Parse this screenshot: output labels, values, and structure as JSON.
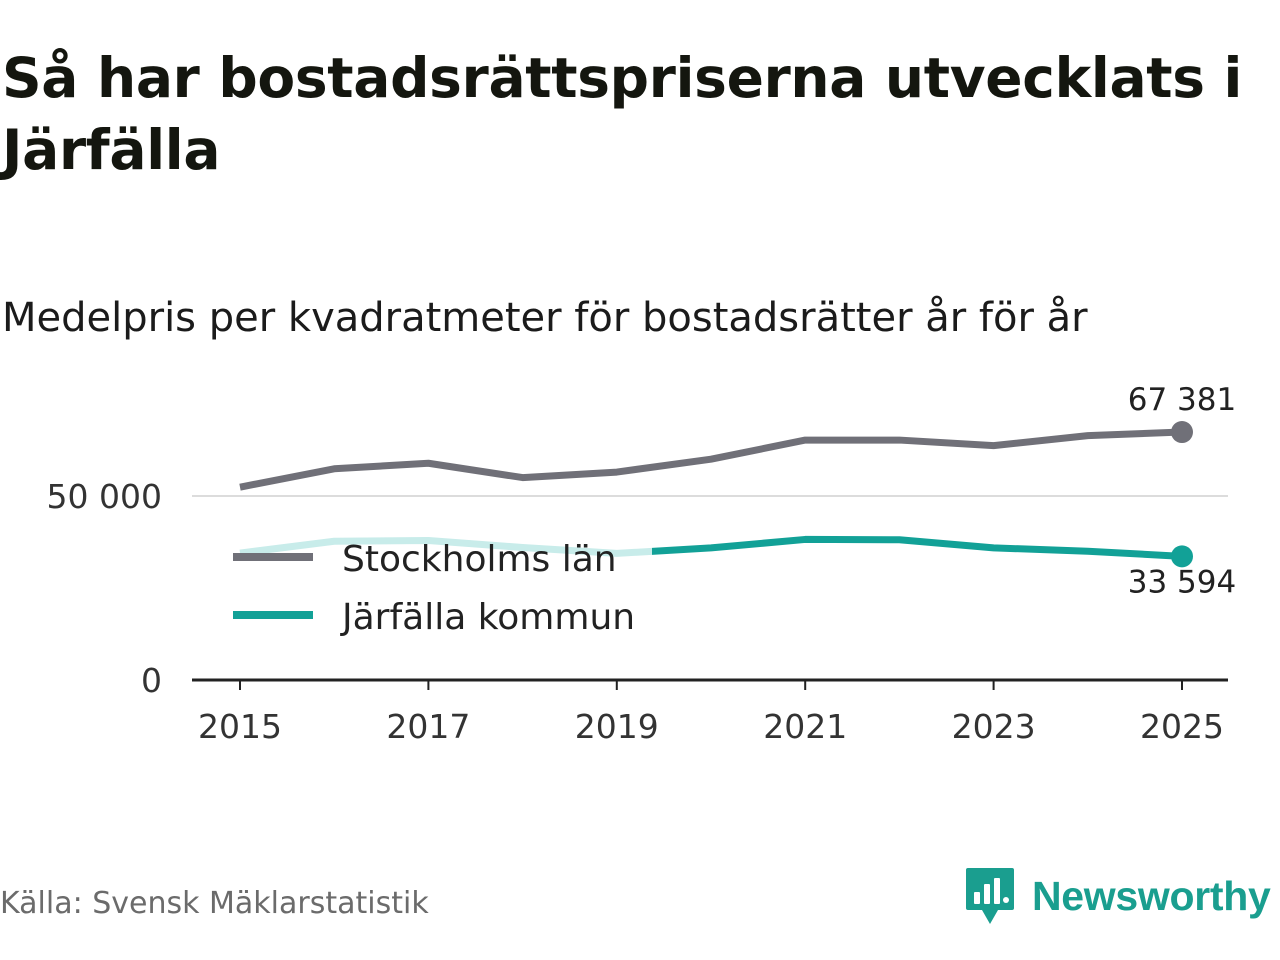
{
  "title": "Så har bostadsrättspriserna utvecklats i Järfälla",
  "subtitle": "Medelpris per kvadratmeter för bostadsrätter år för år",
  "source": "Källa: Svensk Mäklarstatistik",
  "brand": {
    "name": "Newsworthy",
    "icon": "newsworthy-logo-icon",
    "color": "#1a9e8f"
  },
  "chart_data": {
    "type": "line",
    "x": [
      2015,
      2016,
      2017,
      2018,
      2019,
      2020,
      2021,
      2022,
      2023,
      2024,
      2025
    ],
    "ylim": [
      0,
      75000
    ],
    "yticks": [
      {
        "value": 0,
        "label": "0"
      },
      {
        "value": 50000,
        "label": "50 000"
      }
    ],
    "xticks": [
      {
        "value": 2015,
        "label": "2015"
      },
      {
        "value": 2017,
        "label": "2017"
      },
      {
        "value": 2019,
        "label": "2019"
      },
      {
        "value": 2021,
        "label": "2021"
      },
      {
        "value": 2023,
        "label": "2023"
      },
      {
        "value": 2025,
        "label": "2025"
      }
    ],
    "series": [
      {
        "name": "Stockholms län",
        "color": "#707078",
        "values": [
          52400,
          57400,
          58900,
          55000,
          56500,
          60000,
          65200,
          65200,
          63700,
          66400,
          67381
        ],
        "end_label": "67 381"
      },
      {
        "name": "Järfälla kommun",
        "color": "#12a197",
        "faded_color": "#c8ecea",
        "values": [
          34500,
          37700,
          37900,
          36000,
          34400,
          35900,
          38200,
          38100,
          35900,
          35000,
          33594
        ],
        "end_label": "33 594"
      }
    ],
    "legend_position": "center-left",
    "grid": true
  }
}
